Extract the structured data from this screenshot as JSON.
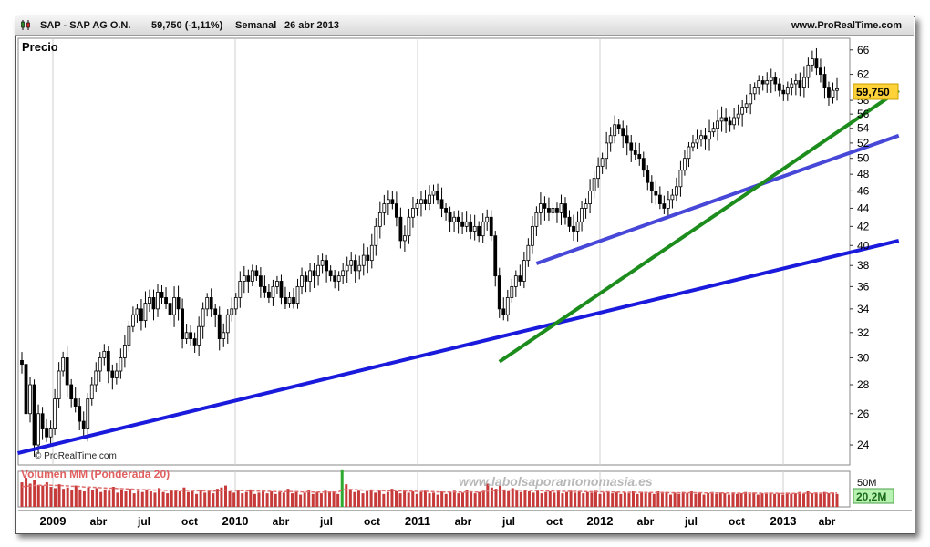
{
  "header": {
    "symbol": "SAP - SAP AG O.N.",
    "quote": "59,750 (-1,11%)",
    "period": "Semanal",
    "date": "26 abr 2013",
    "site": "www.ProRealTime.com"
  },
  "price_panel": {
    "label": "Precio",
    "watermark": "© ProRealTime.com",
    "last_price_tag": "59,750"
  },
  "volume_panel": {
    "label": "Volumen MM (Ponderada 20)",
    "max_tick": "50M",
    "last_value_tag": "20,2M",
    "watermark_url": "www.labolsaporantonomasia.es"
  },
  "colors": {
    "candle": "#000000",
    "trendline_blue": "#1a1adc",
    "trendline_violet": "#4848d8",
    "trendline_green": "#1c8c1c",
    "volume_bar": "#c63a3a",
    "volume_bar_up": "#2eaa2e",
    "volume_ma": "#e07070",
    "price_tag": "#ffd23a",
    "volume_tag": "#b8f2b0"
  },
  "chart_data": [
    {
      "type": "candlestick",
      "title": "SAP - SAP AG O.N.",
      "ylabel": "Precio",
      "y_scale": "log",
      "ylim": [
        22.8,
        68
      ],
      "y_ticks": [
        24,
        26,
        28,
        30,
        32,
        34,
        36,
        38,
        40,
        42,
        44,
        46,
        48,
        50,
        52,
        54,
        56,
        58,
        62,
        66
      ],
      "x_ticks": [
        "2009",
        "abr",
        "jul",
        "oct",
        "2010",
        "abr",
        "jul",
        "oct",
        "2011",
        "abr",
        "jul",
        "oct",
        "2012",
        "abr",
        "jul",
        "oct",
        "2013",
        "abr"
      ],
      "grid": true,
      "last_close": 59.75,
      "change_pct": -1.11,
      "weekly_closes": [
        29.5,
        26,
        28,
        24,
        26,
        25,
        24.5,
        25,
        27,
        29,
        30,
        28,
        27,
        26.5,
        25.5,
        25,
        27,
        28,
        29,
        30,
        30.5,
        29,
        28.5,
        29,
        30,
        31,
        32.5,
        33.5,
        34,
        33,
        34.5,
        35,
        34,
        35.5,
        35,
        34.5,
        33.5,
        35,
        34,
        31.5,
        32,
        31.5,
        31,
        32.5,
        34,
        35,
        34,
        33.5,
        31.5,
        32,
        33.5,
        34,
        35,
        36.5,
        37,
        36.5,
        37.5,
        37,
        36,
        35.5,
        35,
        36,
        36.5,
        35,
        34.5,
        35,
        34.5,
        36,
        37,
        36.5,
        37.5,
        37,
        38,
        38.5,
        37.5,
        37,
        36.5,
        37,
        37.5,
        38,
        38.5,
        37.5,
        38,
        39,
        38.5,
        40,
        42,
        43.5,
        44.5,
        45,
        44.5,
        43,
        40.5,
        41,
        43,
        44,
        44.5,
        45,
        44.5,
        45.5,
        46,
        45,
        44,
        43.5,
        42.5,
        43,
        42.5,
        42,
        42.5,
        41.5,
        42,
        41,
        42.5,
        43,
        41,
        37,
        34,
        33.5,
        35,
        36,
        37,
        36.5,
        38.5,
        40,
        42,
        43.5,
        44.5,
        44,
        43.5,
        44,
        43.5,
        44.5,
        43,
        42,
        41.5,
        42.5,
        44,
        44.5,
        46,
        47.5,
        49,
        50,
        52,
        53,
        54.5,
        54,
        53,
        52,
        51,
        50.5,
        50,
        48.5,
        47,
        46,
        45.5,
        44.5,
        44,
        45,
        45.5,
        46.5,
        48.5,
        50,
        51.5,
        52,
        52.5,
        53,
        52.5,
        53.5,
        54,
        55,
        55.5,
        55,
        54.5,
        55.5,
        56,
        57,
        57.5,
        59,
        60,
        61,
        60.5,
        61,
        61.5,
        60.5,
        59.5,
        59,
        60,
        60.5,
        61,
        60,
        61.5,
        63.5,
        64.5,
        63,
        62,
        60,
        58.5,
        59.5,
        59.75
      ]
    },
    {
      "type": "bar",
      "title": "Volumen MM (Ponderada 20)",
      "ylim": [
        0,
        55
      ],
      "y_ticks": [
        "50M"
      ],
      "last_ma": 20.2,
      "unit": "M",
      "weekly_volume": [
        38,
        45,
        36,
        41,
        34,
        33,
        38,
        31,
        29,
        35,
        28,
        30,
        26,
        33,
        27,
        24,
        30,
        26,
        29,
        23,
        27,
        25,
        31,
        22,
        26,
        24,
        28,
        21,
        25,
        23,
        27,
        24,
        22,
        29,
        23,
        21,
        26,
        25,
        24,
        30,
        23,
        24,
        20,
        26,
        22,
        25,
        21,
        28,
        30,
        33,
        24,
        22,
        26,
        21,
        23,
        27,
        20,
        22,
        25,
        21,
        24,
        20,
        23,
        22,
        28,
        21,
        24,
        19,
        22,
        26,
        20,
        23,
        21,
        25,
        22,
        24,
        20,
        58,
        35,
        26,
        23,
        25,
        21,
        24,
        27,
        22,
        25,
        20,
        23,
        28,
        24,
        21,
        26,
        22,
        24,
        20,
        23,
        25,
        21,
        22,
        19,
        24,
        20,
        23,
        25,
        21,
        22,
        26,
        24,
        21,
        23,
        25,
        36,
        30,
        28,
        33,
        26,
        24,
        29,
        25,
        23,
        26,
        24,
        22,
        25,
        21,
        23,
        24,
        22,
        26,
        21,
        23,
        25,
        22,
        24,
        21,
        23,
        22,
        25,
        20,
        22,
        24,
        21,
        23,
        20,
        22,
        21,
        24,
        20,
        23,
        21,
        22,
        20,
        24,
        21,
        23,
        19,
        22,
        20,
        23,
        21,
        24,
        20,
        22,
        19,
        21,
        23,
        20,
        22,
        21,
        19,
        22,
        20,
        21,
        23,
        20,
        22,
        19,
        21,
        20,
        22,
        20,
        21,
        19,
        22,
        20,
        21,
        23,
        20,
        24,
        21,
        22,
        20,
        23,
        21,
        22,
        20
      ],
      "ma_start": 30
    }
  ]
}
